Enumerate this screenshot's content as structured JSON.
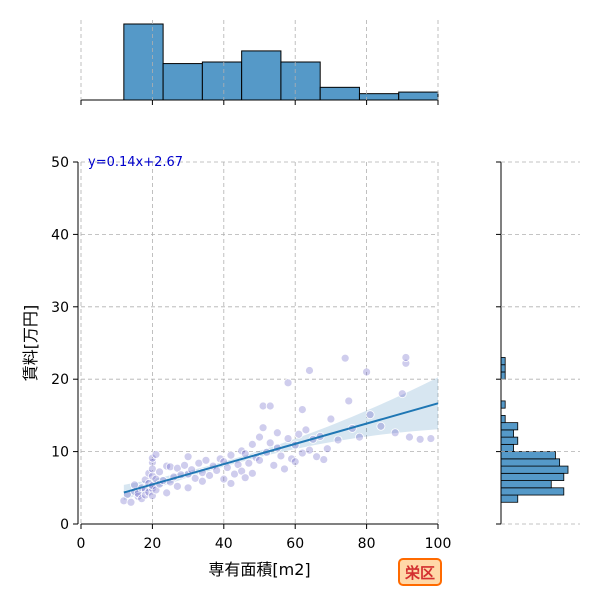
{
  "chart_data": {
    "type": "scatter",
    "title": "",
    "xlabel": "専有面積[m2]",
    "ylabel": "賃料[万円]",
    "xlim": [
      0,
      100
    ],
    "ylim": [
      0,
      50
    ],
    "xticks": [
      0,
      20,
      40,
      60,
      80,
      100
    ],
    "yticks": [
      0,
      10,
      20,
      30,
      40,
      50
    ],
    "grid": true,
    "regression": {
      "slope": 0.14,
      "intercept": 2.67,
      "equation_label": "y=0.14x+2.67",
      "x_range": [
        12,
        100
      ]
    },
    "points": [
      {
        "x": 12,
        "y": 3.2
      },
      {
        "x": 13,
        "y": 4.1
      },
      {
        "x": 14,
        "y": 3.0
      },
      {
        "x": 15,
        "y": 4.5
      },
      {
        "x": 15,
        "y": 5.4
      },
      {
        "x": 16,
        "y": 3.8
      },
      {
        "x": 16,
        "y": 4.2
      },
      {
        "x": 17,
        "y": 5.0
      },
      {
        "x": 17,
        "y": 3.5
      },
      {
        "x": 18,
        "y": 4.8
      },
      {
        "x": 18,
        "y": 6.1
      },
      {
        "x": 18,
        "y": 4.0
      },
      {
        "x": 19,
        "y": 5.6
      },
      {
        "x": 19,
        "y": 4.4
      },
      {
        "x": 19,
        "y": 7.0
      },
      {
        "x": 20,
        "y": 4.9
      },
      {
        "x": 20,
        "y": 5.3
      },
      {
        "x": 20,
        "y": 6.6
      },
      {
        "x": 20,
        "y": 8.5
      },
      {
        "x": 20,
        "y": 9.1
      },
      {
        "x": 20,
        "y": 3.9
      },
      {
        "x": 20,
        "y": 7.6
      },
      {
        "x": 21,
        "y": 6.2
      },
      {
        "x": 21,
        "y": 4.7
      },
      {
        "x": 21,
        "y": 9.6
      },
      {
        "x": 22,
        "y": 5.5
      },
      {
        "x": 22,
        "y": 7.2
      },
      {
        "x": 23,
        "y": 6.0
      },
      {
        "x": 24,
        "y": 4.3
      },
      {
        "x": 24,
        "y": 8.0
      },
      {
        "x": 25,
        "y": 5.8
      },
      {
        "x": 25,
        "y": 7.9
      },
      {
        "x": 26,
        "y": 6.5
      },
      {
        "x": 27,
        "y": 7.7
      },
      {
        "x": 27,
        "y": 5.2
      },
      {
        "x": 28,
        "y": 6.8
      },
      {
        "x": 29,
        "y": 8.1
      },
      {
        "x": 30,
        "y": 9.3
      },
      {
        "x": 30,
        "y": 6.9
      },
      {
        "x": 30,
        "y": 5.0
      },
      {
        "x": 31,
        "y": 7.5
      },
      {
        "x": 32,
        "y": 6.3
      },
      {
        "x": 33,
        "y": 8.4
      },
      {
        "x": 34,
        "y": 7.1
      },
      {
        "x": 34,
        "y": 5.9
      },
      {
        "x": 35,
        "y": 8.8
      },
      {
        "x": 36,
        "y": 6.7
      },
      {
        "x": 37,
        "y": 8.0
      },
      {
        "x": 38,
        "y": 7.4
      },
      {
        "x": 39,
        "y": 9.0
      },
      {
        "x": 40,
        "y": 6.2
      },
      {
        "x": 40,
        "y": 8.6
      },
      {
        "x": 41,
        "y": 7.8
      },
      {
        "x": 42,
        "y": 5.6
      },
      {
        "x": 42,
        "y": 9.5
      },
      {
        "x": 43,
        "y": 6.9
      },
      {
        "x": 44,
        "y": 8.2
      },
      {
        "x": 45,
        "y": 7.3
      },
      {
        "x": 45,
        "y": 10.1
      },
      {
        "x": 46,
        "y": 6.4
      },
      {
        "x": 46,
        "y": 9.7
      },
      {
        "x": 47,
        "y": 8.4
      },
      {
        "x": 48,
        "y": 11.0
      },
      {
        "x": 48,
        "y": 7.0
      },
      {
        "x": 49,
        "y": 9.2
      },
      {
        "x": 50,
        "y": 8.8
      },
      {
        "x": 50,
        "y": 12.0
      },
      {
        "x": 51,
        "y": 13.3
      },
      {
        "x": 51,
        "y": 16.3
      },
      {
        "x": 52,
        "y": 9.9
      },
      {
        "x": 53,
        "y": 16.3
      },
      {
        "x": 53,
        "y": 11.2
      },
      {
        "x": 54,
        "y": 8.1
      },
      {
        "x": 55,
        "y": 10.5
      },
      {
        "x": 55,
        "y": 12.6
      },
      {
        "x": 56,
        "y": 9.4
      },
      {
        "x": 57,
        "y": 7.6
      },
      {
        "x": 58,
        "y": 19.5
      },
      {
        "x": 58,
        "y": 11.8
      },
      {
        "x": 59,
        "y": 9.0
      },
      {
        "x": 60,
        "y": 10.9
      },
      {
        "x": 60,
        "y": 8.6
      },
      {
        "x": 61,
        "y": 12.4
      },
      {
        "x": 62,
        "y": 15.8
      },
      {
        "x": 62,
        "y": 9.8
      },
      {
        "x": 63,
        "y": 13.0
      },
      {
        "x": 64,
        "y": 21.2
      },
      {
        "x": 64,
        "y": 10.2
      },
      {
        "x": 65,
        "y": 11.7
      },
      {
        "x": 66,
        "y": 9.3
      },
      {
        "x": 67,
        "y": 12.1
      },
      {
        "x": 68,
        "y": 8.9
      },
      {
        "x": 69,
        "y": 10.4
      },
      {
        "x": 70,
        "y": 14.5
      },
      {
        "x": 72,
        "y": 11.6
      },
      {
        "x": 74,
        "y": 22.9
      },
      {
        "x": 75,
        "y": 17.0
      },
      {
        "x": 76,
        "y": 13.2
      },
      {
        "x": 78,
        "y": 12.0
      },
      {
        "x": 80,
        "y": 21.0
      },
      {
        "x": 81,
        "y": 15.1
      },
      {
        "x": 84,
        "y": 13.5
      },
      {
        "x": 88,
        "y": 12.6
      },
      {
        "x": 90,
        "y": 18.0
      },
      {
        "x": 91,
        "y": 22.2
      },
      {
        "x": 91,
        "y": 23.0
      },
      {
        "x": 92,
        "y": 12.0
      },
      {
        "x": 95,
        "y": 11.7
      },
      {
        "x": 98,
        "y": 11.8
      }
    ],
    "x_histogram": {
      "bin_edges": [
        12,
        23,
        34,
        45,
        56,
        67,
        78,
        89,
        100
      ],
      "counts": [
        48,
        23,
        24,
        31,
        24,
        8,
        4,
        5
      ]
    },
    "y_histogram": {
      "bin_edges": [
        3,
        4,
        5,
        6,
        7,
        8,
        9,
        10,
        11,
        12,
        13,
        14,
        15,
        16,
        17,
        18,
        19,
        20,
        21,
        22,
        23
      ],
      "counts": [
        4,
        15,
        12,
        15,
        16,
        14,
        13,
        3,
        4,
        3,
        4,
        1,
        0,
        1,
        0,
        0,
        0,
        1,
        1,
        1
      ]
    }
  },
  "badge": {
    "text": "栄区"
  }
}
